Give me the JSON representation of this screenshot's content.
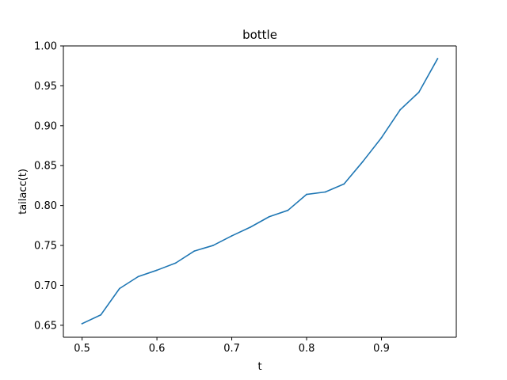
{
  "chart_data": {
    "type": "line",
    "title": "bottle",
    "xlabel": "t",
    "ylabel": "tailacc(t)",
    "xlim": [
      0.475,
      1.0
    ],
    "ylim": [
      0.635,
      1.0
    ],
    "xticks": [
      0.5,
      0.6,
      0.7,
      0.8,
      0.9
    ],
    "xtick_labels": [
      "0.5",
      "0.6",
      "0.7",
      "0.8",
      "0.9"
    ],
    "yticks": [
      0.65,
      0.7,
      0.75,
      0.8,
      0.85,
      0.9,
      0.95,
      1.0
    ],
    "ytick_labels": [
      "0.65",
      "0.70",
      "0.75",
      "0.80",
      "0.85",
      "0.90",
      "0.95",
      "1.00"
    ],
    "grid": false,
    "series": [
      {
        "color": "#1f77b4",
        "x": [
          0.5,
          0.525,
          0.55,
          0.575,
          0.6,
          0.625,
          0.65,
          0.675,
          0.7,
          0.725,
          0.75,
          0.775,
          0.8,
          0.825,
          0.85,
          0.875,
          0.9,
          0.925,
          0.95,
          0.975
        ],
        "y": [
          0.652,
          0.663,
          0.696,
          0.711,
          0.719,
          0.728,
          0.743,
          0.75,
          0.762,
          0.773,
          0.786,
          0.794,
          0.814,
          0.817,
          0.827,
          0.855,
          0.885,
          0.92,
          0.942,
          0.984
        ]
      }
    ]
  }
}
